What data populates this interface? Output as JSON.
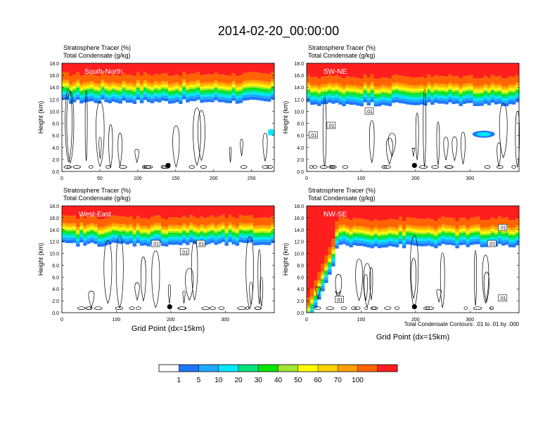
{
  "title": "2014-02-20_00:00:00",
  "panel_line1": "Stratosphere Tracer   (%)",
  "panel_line2": "Total Condensate   (g/kg)",
  "ylabel": "Height (km)",
  "xlabel": "Grid Point (dx=15km)",
  "footnote": "Total Condensate Contours: .01 to .01 by .000",
  "contour_label": ".01",
  "colorbar": {
    "colors": [
      "#ffffff",
      "#1e78ff",
      "#1eaaff",
      "#00e8ff",
      "#00e27a",
      "#00e600",
      "#a0e632",
      "#ffff00",
      "#ffd200",
      "#ffa000",
      "#ff6400",
      "#ff1e1e"
    ],
    "labels": [
      "1",
      "5",
      "10",
      "20",
      "30",
      "40",
      "50",
      "60",
      "70",
      "100"
    ]
  },
  "chart_data": [
    {
      "type": "heatmap",
      "name": "South-North",
      "xlim": [
        0,
        280
      ],
      "ylim": [
        0,
        18
      ],
      "xticks": [
        0,
        50,
        100,
        150,
        200,
        250
      ],
      "yticks": [
        "0.0",
        "2.0",
        "4.0",
        "6.0",
        "8.0",
        "10.0",
        "12.0",
        "14.0",
        "16.0",
        "18.0"
      ],
      "marker": {
        "x": 140,
        "y": 1.0
      },
      "tracer_base_km": 15.4,
      "contour_labels": []
    },
    {
      "type": "heatmap",
      "name": "SW-NE",
      "xlim": [
        0,
        390
      ],
      "ylim": [
        0,
        18
      ],
      "xticks": [
        0,
        100,
        200,
        300
      ],
      "yticks": [
        "0.0",
        "2.0",
        "4.0",
        "6.0",
        "8.0",
        "10.0",
        "12.0",
        "14.0",
        "16.0",
        "18.0"
      ],
      "marker": {
        "x": 198,
        "y": 1.0
      },
      "tracer_base_km": 15.0,
      "contour_labels": [
        {
          "x": 12,
          "y": 6.0
        },
        {
          "x": 45,
          "y": 7.6
        },
        {
          "x": 115,
          "y": 10.0
        }
      ]
    },
    {
      "type": "heatmap",
      "name": "West-East",
      "xlim": [
        0,
        390
      ],
      "ylim": [
        0,
        18
      ],
      "xticks": [
        0,
        100,
        200,
        300
      ],
      "yticks": [
        "0.0",
        "2.0",
        "4.0",
        "6.0",
        "8.0",
        "10.0",
        "12.0",
        "14.0",
        "16.0",
        "18.0"
      ],
      "marker": {
        "x": 198,
        "y": 1.0
      },
      "tracer_base_km": 15.3,
      "contour_labels": [
        {
          "x": 172,
          "y": 11.6
        },
        {
          "x": 225,
          "y": 10.2
        },
        {
          "x": 255,
          "y": 11.6
        }
      ]
    },
    {
      "type": "heatmap",
      "name": "NW-SE",
      "xlim": [
        0,
        390
      ],
      "ylim": [
        0,
        18
      ],
      "xticks": [
        0,
        100,
        200,
        300
      ],
      "yticks": [
        "0.0",
        "2.0",
        "4.0",
        "6.0",
        "8.0",
        "10.0",
        "12.0",
        "14.0",
        "16.0",
        "18.0"
      ],
      "marker": {
        "x": 198,
        "y": 1.0
      },
      "tracer_base_km": 15.0,
      "contour_labels": [
        {
          "x": 60,
          "y": 2.2
        },
        {
          "x": 340,
          "y": 11.6
        },
        {
          "x": 360,
          "y": 14.3
        },
        {
          "x": 360,
          "y": 2.4
        }
      ]
    }
  ]
}
